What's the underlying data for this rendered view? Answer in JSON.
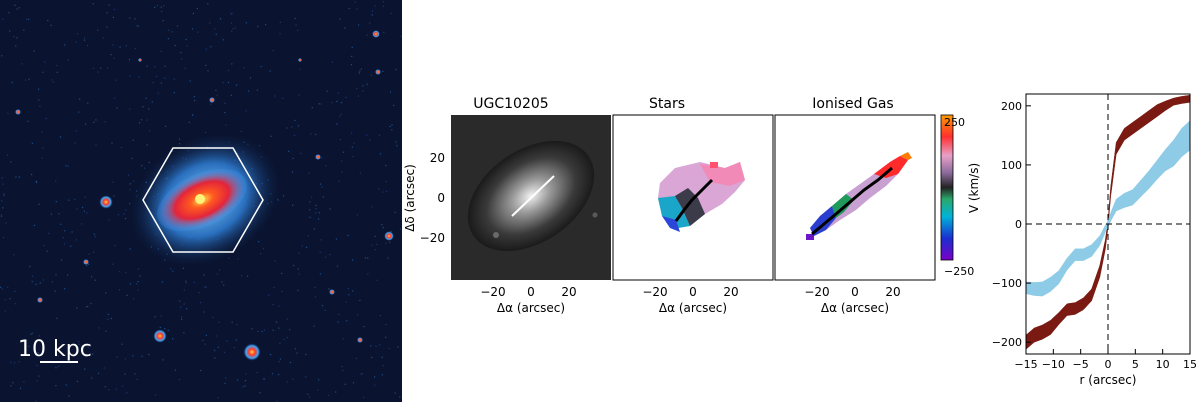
{
  "galaxy_image": {
    "scalebar_label": "10 kpc"
  },
  "maps": {
    "panel_titles": [
      "UGC10205",
      "Stars",
      "Ionised Gas"
    ],
    "xlabel": "Δα (arcsec)",
    "ylabel": "Δδ (arcsec)",
    "xticks": [
      "−20",
      "0",
      "20"
    ],
    "yticks": [
      "20",
      "0",
      "−20"
    ],
    "colorbar": {
      "label": "V (km/s)",
      "max_label": "250",
      "min_label": "−250"
    }
  },
  "chart_data": {
    "type": "line",
    "xlabel": "r (arcsec)",
    "ylabel": "",
    "xlim": [
      -15,
      15
    ],
    "ylim": [
      -220,
      220
    ],
    "xticks": [
      "−15",
      "−10",
      "−5",
      "0",
      "5",
      "10",
      "15"
    ],
    "yticks": [
      "200",
      "100",
      "0",
      "−100",
      "−200"
    ],
    "grid": false,
    "series": [
      {
        "color": "#7a1a12",
        "style": "filled band",
        "x": [
          -15,
          -13.5,
          -12,
          -10.5,
          -9,
          -7.5,
          -6,
          -4.5,
          -3,
          -1.5,
          -0.5,
          0,
          0.5,
          1.5,
          3,
          4.5,
          6,
          7.5,
          9,
          10.5,
          12,
          13.5,
          15
        ],
        "y": [
          -200,
          -188,
          -183,
          -175,
          -160,
          -145,
          -143,
          -135,
          -120,
          -80,
          -35,
          0,
          55,
          128,
          152,
          162,
          172,
          182,
          192,
          200,
          207,
          210,
          212
        ],
        "band": [
          12,
          12,
          12,
          12,
          10,
          10,
          10,
          10,
          10,
          10,
          8,
          6,
          8,
          10,
          10,
          10,
          10,
          10,
          10,
          8,
          6,
          6,
          6
        ]
      },
      {
        "color": "#8dcbe6",
        "style": "filled band",
        "x": [
          -15,
          -13.5,
          -12,
          -10.5,
          -9,
          -7.5,
          -6,
          -4.5,
          -3,
          -1.5,
          -0.5,
          0,
          0.5,
          1.5,
          3,
          4.5,
          6,
          7.5,
          9,
          10.5,
          12,
          13.5,
          15
        ],
        "y": [
          -108,
          -110,
          -110,
          -102,
          -90,
          -68,
          -52,
          -52,
          -45,
          -28,
          -8,
          0,
          12,
          32,
          40,
          45,
          60,
          75,
          92,
          108,
          120,
          138,
          150
        ],
        "band": [
          10,
          11,
          12,
          12,
          11,
          10,
          10,
          10,
          10,
          8,
          6,
          5,
          7,
          10,
          12,
          13,
          14,
          15,
          16,
          18,
          22,
          24,
          25
        ]
      }
    ]
  }
}
